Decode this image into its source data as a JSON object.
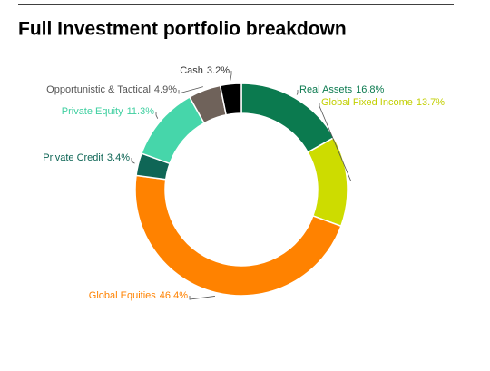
{
  "chart_data": {
    "type": "donut",
    "title": "Full Investment portfolio breakdown",
    "categories": [
      "Real Assets",
      "Global Fixed Income",
      "Global Equities",
      "Private Credit",
      "Private Equity",
      "Opportunistic & Tactical",
      "Cash"
    ],
    "values": [
      16.8,
      13.7,
      46.4,
      3.4,
      11.3,
      4.9,
      3.2
    ],
    "value_labels": [
      "16.8%",
      "13.7%",
      "46.4%",
      "3.4%",
      "11.3%",
      "4.9%",
      "3.2%"
    ],
    "colors": [
      "#0b7a4f",
      "#cddc00",
      "#ff8200",
      "#0f6656",
      "#46d6aa",
      "#6f625a",
      "#000000"
    ]
  }
}
